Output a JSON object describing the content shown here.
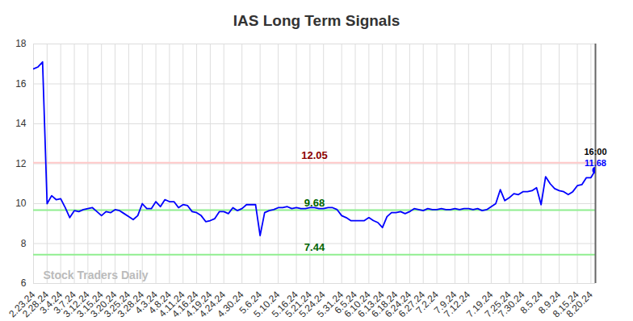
{
  "chart_data": {
    "type": "line",
    "title": "IAS Long Term Signals",
    "watermark": "Stock Traders Daily",
    "categories": [
      "2.23.24",
      null,
      null,
      "2.28.24",
      null,
      null,
      "3.4.24",
      null,
      null,
      "3.7.24",
      null,
      null,
      "3.12.24",
      null,
      null,
      "3.15.24",
      null,
      null,
      "3.20.24",
      null,
      null,
      "3.25.24",
      null,
      null,
      "3.28.24",
      null,
      null,
      "4.3.24",
      null,
      null,
      "4.8.24",
      null,
      null,
      "4.11.24",
      null,
      null,
      "4.16.24",
      null,
      null,
      "4.19.24",
      null,
      null,
      "4.24.24",
      null,
      null,
      null,
      "4.30.24",
      null,
      null,
      null,
      "5.6.24",
      null,
      null,
      null,
      "5.10.24",
      null,
      null,
      null,
      "5.16.24",
      null,
      null,
      "5.21.24",
      null,
      null,
      "5.24.24",
      null,
      null,
      null,
      "5.31.24",
      null,
      null,
      "6.5.24",
      null,
      null,
      "6.10.24",
      null,
      null,
      "6.13.24",
      null,
      null,
      "6.18.24",
      null,
      null,
      "6.24.24",
      null,
      null,
      "6.27.24",
      null,
      null,
      "7.2.24",
      null,
      null,
      null,
      "7.9.24",
      null,
      null,
      "7.12.24",
      null,
      null,
      null,
      null,
      "7.19.24",
      null,
      null,
      null,
      "7.25.24",
      null,
      null,
      "7.30.24",
      null,
      null,
      null,
      "8.5.24",
      null,
      null,
      null,
      "8.9.24",
      null,
      null,
      null,
      "8.15.24",
      null,
      null,
      "8.20.24",
      null
    ],
    "values": [
      16.75,
      16.85,
      17.1,
      10.0,
      10.4,
      10.2,
      10.25,
      9.8,
      9.3,
      9.65,
      9.6,
      9.7,
      9.75,
      9.8,
      9.6,
      9.4,
      9.6,
      9.55,
      9.7,
      9.65,
      9.5,
      9.35,
      9.2,
      9.4,
      10.0,
      9.75,
      9.75,
      10.1,
      9.85,
      10.2,
      10.1,
      10.1,
      9.8,
      9.95,
      9.9,
      9.6,
      9.55,
      9.4,
      9.1,
      9.15,
      9.25,
      9.6,
      9.6,
      9.5,
      9.8,
      9.65,
      9.75,
      9.95,
      9.95,
      9.95,
      8.4,
      9.55,
      9.65,
      9.7,
      9.8,
      9.8,
      9.85,
      9.75,
      9.8,
      9.75,
      9.75,
      9.8,
      9.8,
      9.75,
      9.75,
      9.8,
      9.8,
      9.7,
      9.4,
      9.3,
      9.15,
      9.15,
      9.15,
      9.15,
      9.3,
      9.15,
      9.05,
      8.8,
      9.35,
      9.55,
      9.55,
      9.6,
      9.5,
      9.6,
      9.75,
      9.7,
      9.65,
      9.75,
      9.7,
      9.7,
      9.75,
      9.7,
      9.7,
      9.75,
      9.7,
      9.75,
      9.75,
      9.7,
      9.75,
      9.65,
      9.7,
      9.85,
      10.0,
      10.7,
      10.15,
      10.3,
      10.5,
      10.45,
      10.6,
      10.6,
      10.65,
      10.8,
      9.95,
      11.35,
      11.0,
      10.75,
      10.65,
      10.6,
      10.45,
      10.6,
      10.9,
      10.95,
      11.3,
      11.3,
      11.68
    ],
    "color": "#0000ff",
    "hlines": [
      {
        "value": 12.05,
        "color": "#ffc8c8",
        "label_color": "#8b0000"
      },
      {
        "value": 9.68,
        "color": "#90ee90",
        "label_color": "#006400"
      },
      {
        "value": 7.44,
        "color": "#90ee90",
        "label_color": "#006400"
      }
    ],
    "last_point": {
      "time": "16:00",
      "value": 11.68
    },
    "ylim": [
      6,
      18
    ],
    "yticks": [
      6,
      8,
      10,
      12,
      14,
      16,
      18
    ],
    "grid": true
  }
}
